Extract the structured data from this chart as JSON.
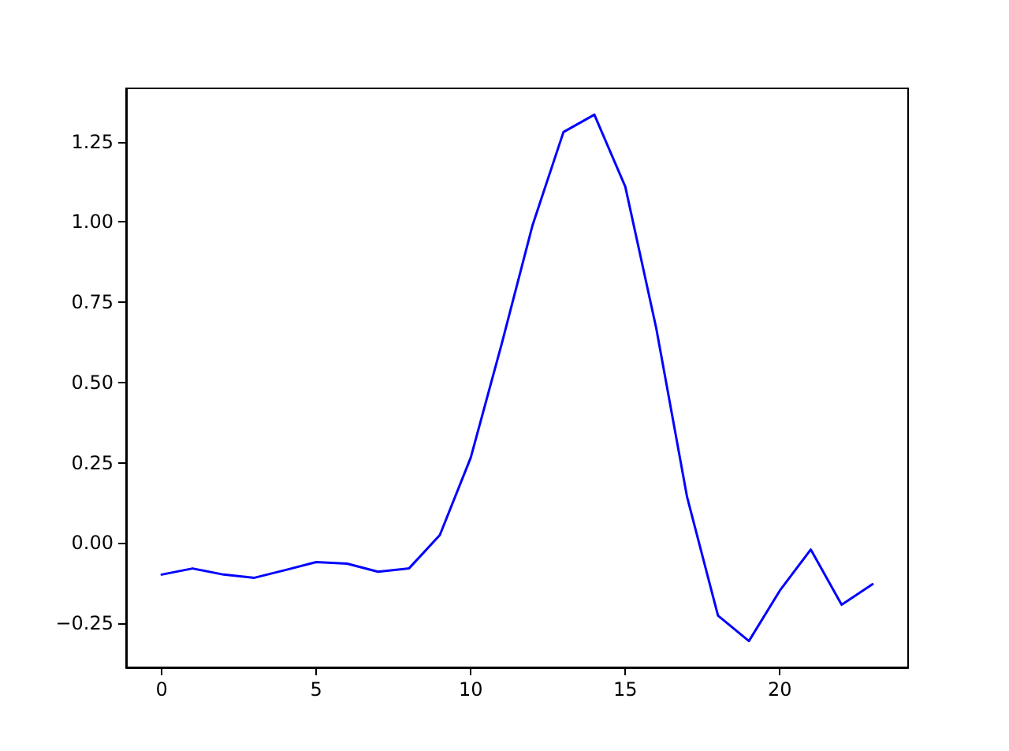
{
  "chart_data": {
    "type": "line",
    "x": [
      0,
      1,
      2,
      3,
      4,
      5,
      6,
      7,
      8,
      9,
      10,
      11,
      12,
      13,
      14,
      15,
      16,
      17,
      18,
      19,
      20,
      21,
      22,
      23
    ],
    "series": [
      {
        "color": "#0000ff",
        "values": [
          -0.098,
          -0.079,
          -0.098,
          -0.108,
          -0.084,
          -0.059,
          -0.064,
          -0.089,
          -0.079,
          0.025,
          0.266,
          0.62,
          0.99,
          1.28,
          1.334,
          1.11,
          0.67,
          0.143,
          -0.226,
          -0.305,
          -0.148,
          -0.02,
          -0.192,
          -0.128
        ]
      }
    ],
    "xlim": [
      -1.15,
      24.15
    ],
    "ylim": [
      -0.387,
      1.416
    ],
    "xticks": [
      0,
      5,
      10,
      15,
      20
    ],
    "yticks": [
      {
        "value": -0.25,
        "label": "−0.25"
      },
      {
        "value": 0,
        "label": "0.00"
      },
      {
        "value": 0.25,
        "label": "0.25"
      },
      {
        "value": 0.5,
        "label": "0.50"
      },
      {
        "value": 0.75,
        "label": "0.75"
      },
      {
        "value": 1,
        "label": "1.00"
      },
      {
        "value": 1.25,
        "label": "1.25"
      }
    ],
    "grid": false,
    "marker": "none",
    "line_style": "solid"
  }
}
